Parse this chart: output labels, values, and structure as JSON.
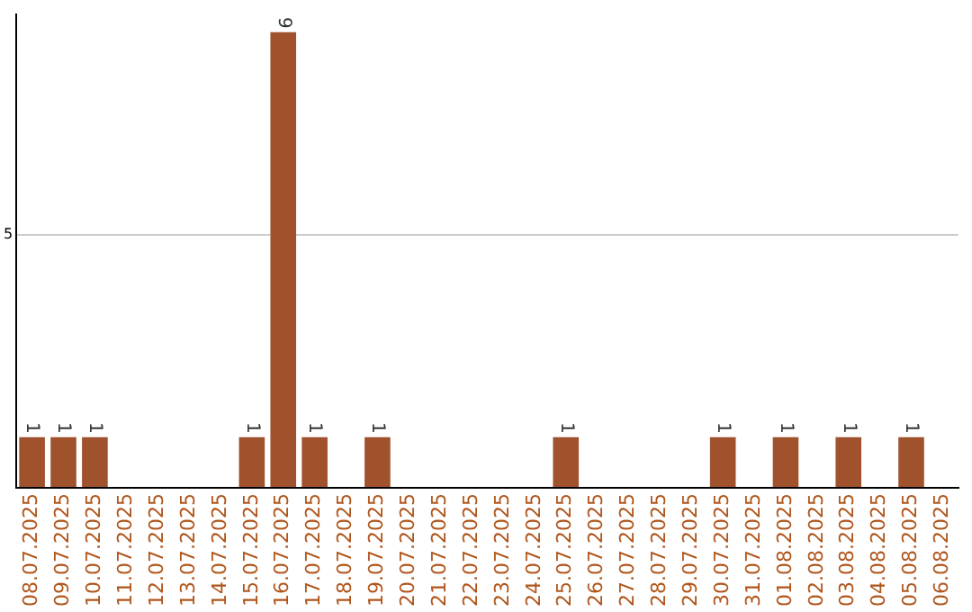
{
  "chart_data": {
    "type": "bar",
    "categories": [
      "08.07.2025",
      "09.07.2025",
      "10.07.2025",
      "11.07.2025",
      "12.07.2025",
      "13.07.2025",
      "14.07.2025",
      "15.07.2025",
      "16.07.2025",
      "17.07.2025",
      "18.07.2025",
      "19.07.2025",
      "20.07.2025",
      "21.07.2025",
      "22.07.2025",
      "23.07.2025",
      "24.07.2025",
      "25.07.2025",
      "26.07.2025",
      "27.07.2025",
      "28.07.2025",
      "29.07.2025",
      "30.07.2025",
      "31.07.2025",
      "01.08.2025",
      "02.08.2025",
      "03.08.2025",
      "04.08.2025",
      "05.08.2025",
      "06.08.2025"
    ],
    "values": [
      1,
      1,
      1,
      0,
      0,
      0,
      0,
      1,
      9,
      1,
      0,
      1,
      0,
      0,
      0,
      0,
      0,
      1,
      0,
      0,
      0,
      0,
      1,
      0,
      1,
      0,
      1,
      0,
      1,
      0
    ],
    "value_labels": [
      "1",
      "1",
      "1",
      null,
      null,
      null,
      null,
      "1",
      "9",
      "1",
      null,
      "1",
      null,
      null,
      null,
      null,
      null,
      "1",
      null,
      null,
      null,
      null,
      "1",
      null,
      "1",
      null,
      "1",
      null,
      "1",
      null
    ],
    "color": "#a0522d",
    "ylim": [
      0,
      9.35
    ],
    "yticks": [
      {
        "value": 0,
        "label": null
      },
      5
    ],
    "grid": "y"
  }
}
